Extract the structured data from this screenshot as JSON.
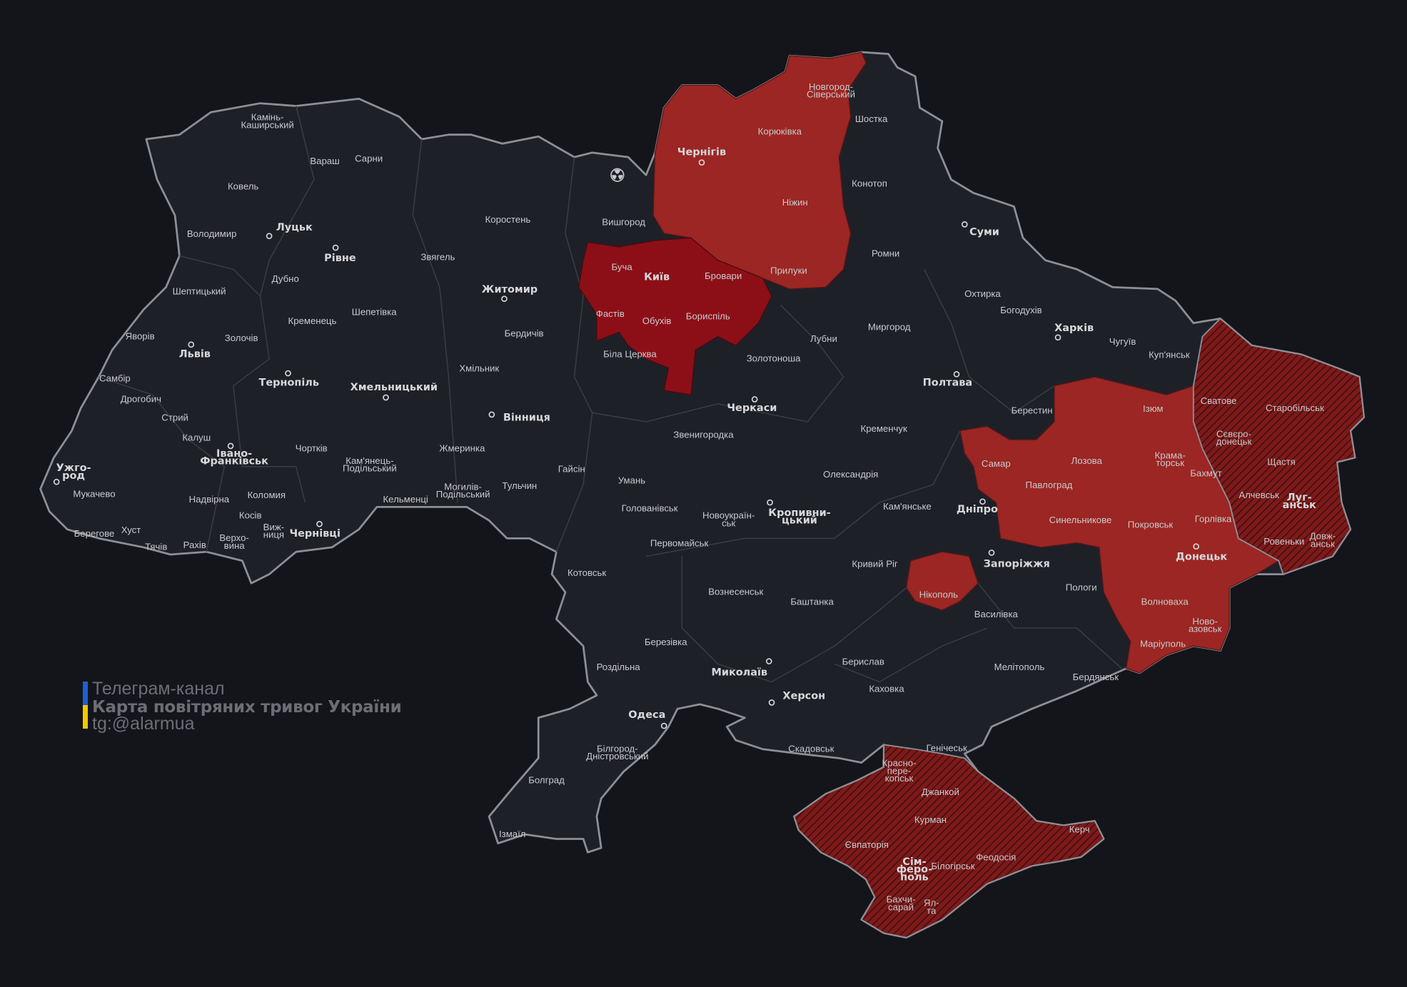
{
  "title": "Карта повітряних тривог України",
  "logo": {
    "line1": "Телеграм-канал",
    "line2": "Карта повітряних тривог України",
    "line3": "tg:@alarmua",
    "flag_colors": [
      "#1f5fd6",
      "#f5c800"
    ]
  },
  "colors": {
    "background": "#13151a",
    "region_fill": "#1e2028",
    "border": "#8d8f96",
    "alert": "#9b2623",
    "alert_strong": "#8c0f18",
    "occupied_hatched": "#7a1818"
  },
  "alert_regions": [
    "Чернігівська область",
    "Київська область",
    "Дніпропетровська область (частина)",
    "Донецька область",
    "Нікопольський район",
    "Луганська область",
    "АР Крим"
  ],
  "icons": [
    "radiation-icon"
  ],
  "labels": [
    {
      "text": "Камінь-\nКаширський"
    },
    {
      "text": "Вараш"
    },
    {
      "text": "Сарни"
    },
    {
      "text": "Ковель"
    },
    {
      "text": "Луцьк",
      "bold": true
    },
    {
      "text": "Володимир"
    },
    {
      "text": "Рівне",
      "bold": true
    },
    {
      "text": "Дубно"
    },
    {
      "text": "Шептицький"
    },
    {
      "text": "Кременець"
    },
    {
      "text": "Шепетівка"
    },
    {
      "text": "Яворів"
    },
    {
      "text": "Золочів"
    },
    {
      "text": "Львів",
      "bold": true
    },
    {
      "text": "Тернопіль",
      "bold": true
    },
    {
      "text": "Хмельницький",
      "bold": true
    },
    {
      "text": "Самбір"
    },
    {
      "text": "Дрогобич"
    },
    {
      "text": "Стрий"
    },
    {
      "text": "Калуш"
    },
    {
      "text": "Івано-\nФранківськ",
      "bold": true
    },
    {
      "text": "Чортків"
    },
    {
      "text": "Кам'янець-\nПодільський"
    },
    {
      "text": "Ужго-\nрод",
      "bold": true
    },
    {
      "text": "Мукачево"
    },
    {
      "text": "Надвірна"
    },
    {
      "text": "Коломия"
    },
    {
      "text": "Кельменці"
    },
    {
      "text": "Косів"
    },
    {
      "text": "Берегове"
    },
    {
      "text": "Хуст"
    },
    {
      "text": "Тячів"
    },
    {
      "text": "Рахів"
    },
    {
      "text": "Верхо-\nвина"
    },
    {
      "text": "Виж-\nниця"
    },
    {
      "text": "Чернівці",
      "bold": true
    },
    {
      "text": "Коростень"
    },
    {
      "text": "Звягель"
    },
    {
      "text": "Житомир",
      "bold": true
    },
    {
      "text": "Вишгород"
    },
    {
      "text": "Буча"
    },
    {
      "text": "Київ",
      "bold": true
    },
    {
      "text": "Бровари"
    },
    {
      "text": "Фастів"
    },
    {
      "text": "Обухів"
    },
    {
      "text": "Бориспіль"
    },
    {
      "text": "Бердичів"
    },
    {
      "text": "Хмільник"
    },
    {
      "text": "Біла Церква"
    },
    {
      "text": "Вінниця",
      "bold": true
    },
    {
      "text": "Жмеринка"
    },
    {
      "text": "Могилів-\nПодільський"
    },
    {
      "text": "Тульчин"
    },
    {
      "text": "Гайсін"
    },
    {
      "text": "Умань"
    },
    {
      "text": "Звенигородка"
    },
    {
      "text": "Черкаси",
      "bold": true
    },
    {
      "text": "Золотоноша"
    },
    {
      "text": "Лубни"
    },
    {
      "text": "Голованівськ"
    },
    {
      "text": "Новоукраїн-\nськ"
    },
    {
      "text": "Кропивни-\nцький",
      "bold": true
    },
    {
      "text": "Олександрія"
    },
    {
      "text": "Первомайськ"
    },
    {
      "text": "Котовськ"
    },
    {
      "text": "Вознесенськ"
    },
    {
      "text": "Баштанка"
    },
    {
      "text": "Березівка"
    },
    {
      "text": "Роздільна"
    },
    {
      "text": "Миколаїв",
      "bold": true
    },
    {
      "text": "Херсон",
      "bold": true
    },
    {
      "text": "Одеса",
      "bold": true
    },
    {
      "text": "Білгород-\nДністровський"
    },
    {
      "text": "Болград"
    },
    {
      "text": "Ізмаїл"
    },
    {
      "text": "Берислав"
    },
    {
      "text": "Каховка"
    },
    {
      "text": "Скадовськ"
    },
    {
      "text": "Генічеськ"
    },
    {
      "text": "Новгород-\nСіверський"
    },
    {
      "text": "Шостка"
    },
    {
      "text": "Корюківка"
    },
    {
      "text": "Чернігів",
      "bold": true
    },
    {
      "text": "Конотоп"
    },
    {
      "text": "Ніжин"
    },
    {
      "text": "Суми",
      "bold": true
    },
    {
      "text": "Ромни"
    },
    {
      "text": "Прилуки"
    },
    {
      "text": "Охтирка"
    },
    {
      "text": "Богодухів"
    },
    {
      "text": "Миргород"
    },
    {
      "text": "Харків",
      "bold": true
    },
    {
      "text": "Чугуїв"
    },
    {
      "text": "Куп'янськ"
    },
    {
      "text": "Полтава",
      "bold": true
    },
    {
      "text": "Кременчук"
    },
    {
      "text": "Берестин"
    },
    {
      "text": "Ізюм"
    },
    {
      "text": "Сватове"
    },
    {
      "text": "Старобільськ"
    },
    {
      "text": "Самар"
    },
    {
      "text": "Лозова"
    },
    {
      "text": "Крама-\nторськ"
    },
    {
      "text": "Сєвєро-\nдонецьк"
    },
    {
      "text": "Щастя"
    },
    {
      "text": "Бахмут"
    },
    {
      "text": "Павлоград"
    },
    {
      "text": "Кам'янське"
    },
    {
      "text": "Дніпро",
      "bold": true
    },
    {
      "text": "Синельникове"
    },
    {
      "text": "Алчевськ"
    },
    {
      "text": "Луг-\nанськ",
      "bold": true
    },
    {
      "text": "Покровськ"
    },
    {
      "text": "Горлівка"
    },
    {
      "text": "Ровеньки"
    },
    {
      "text": "Довж-\nанськ"
    },
    {
      "text": "Запоріжжя",
      "bold": true
    },
    {
      "text": "Кривий Ріг"
    },
    {
      "text": "Донецьк",
      "bold": true
    },
    {
      "text": "Нікополь"
    },
    {
      "text": "Пологи"
    },
    {
      "text": "Василівка"
    },
    {
      "text": "Волноваха"
    },
    {
      "text": "Ново-\nазовськ"
    },
    {
      "text": "Маріуполь"
    },
    {
      "text": "Мелітополь"
    },
    {
      "text": "Бердянськ"
    },
    {
      "text": "Красно-\nпере-\nкопськ"
    },
    {
      "text": "Джанкой"
    },
    {
      "text": "Курман"
    },
    {
      "text": "Керч"
    },
    {
      "text": "Євпаторія"
    },
    {
      "text": "Сім-\nферо-\nполь",
      "bold": true
    },
    {
      "text": "Білогірськ"
    },
    {
      "text": "Феодосія"
    },
    {
      "text": "Бахчи-\nсарай"
    },
    {
      "text": "Ял-\nта"
    }
  ]
}
